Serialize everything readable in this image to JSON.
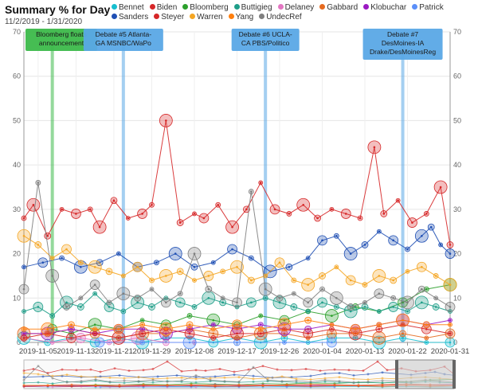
{
  "chart_data": {
    "type": "line",
    "title": "Summary % for Day",
    "subtitle": "11/2/2019 - 1/31/2020",
    "ylim": [
      0,
      70
    ],
    "y_ticks": [
      0,
      10,
      20,
      30,
      40,
      50,
      60,
      70
    ],
    "y_tick_labels": [
      "0",
      "10",
      "20",
      "30",
      "40",
      "50",
      "60",
      "70"
    ],
    "x_tick_labels": [
      "2019-11-05",
      "2019-11-13",
      "2019-11-21",
      "2019-11-29",
      "2019-12-08",
      "2019-12-17",
      "2019-12-26",
      "2020-01-04",
      "2020-01-13",
      "2020-01-22",
      "2020-01-31"
    ],
    "x_ticks_day": [
      3,
      11,
      19,
      27,
      36,
      45,
      54,
      63,
      72,
      81,
      90
    ],
    "x_range_days": [
      0,
      90
    ],
    "grid": true,
    "legend_position": "top-right",
    "annotations": [
      {
        "day": 6,
        "text": [
          "Bloomberg floats",
          "announcement"
        ],
        "color": "#3cb94a"
      },
      {
        "day": 21,
        "text": [
          "Debate #5 Atlanta-",
          "GA MSNBC/WaPo"
        ],
        "color": "#5aa8e6"
      },
      {
        "day": 51,
        "text": [
          "Debate #6 UCLA-",
          "CA PBS/Politico"
        ],
        "color": "#5aa8e6"
      },
      {
        "day": 80,
        "text": [
          "Debate #7",
          "DesMoines-IA",
          "Drake/DesMoinesReg"
        ],
        "color": "#5aa8e6"
      }
    ],
    "series": [
      {
        "name": "Bennet",
        "color": "#17becf",
        "x": [
          0,
          5,
          10,
          15,
          20,
          25,
          30,
          35,
          40,
          45,
          50,
          55,
          60,
          65,
          70,
          75,
          80,
          85,
          90
        ],
        "values": [
          1,
          0,
          1,
          0,
          1,
          0,
          1,
          1,
          0,
          1,
          0,
          1,
          0,
          1,
          1,
          0,
          1,
          0,
          0
        ]
      },
      {
        "name": "Biden",
        "color": "#d62728",
        "x": [
          0,
          2,
          5,
          8,
          11,
          14,
          16,
          19,
          22,
          25,
          27,
          30,
          33,
          36,
          38,
          41,
          44,
          47,
          50,
          53,
          56,
          59,
          62,
          65,
          68,
          71,
          74,
          76,
          79,
          82,
          85,
          88,
          90
        ],
        "values": [
          28,
          31,
          24,
          30,
          29,
          30,
          26,
          32,
          28,
          29,
          31,
          50,
          27,
          29,
          28,
          31,
          26,
          30,
          36,
          30,
          29,
          31,
          28,
          30,
          29,
          28,
          44,
          29,
          32,
          27,
          29,
          35,
          22
        ]
      },
      {
        "name": "Bloomberg",
        "color": "#2ca02c",
        "x": [
          6,
          10,
          15,
          20,
          25,
          30,
          35,
          40,
          45,
          50,
          55,
          60,
          65,
          70,
          75,
          80,
          85,
          90
        ],
        "values": [
          3,
          2,
          4,
          3,
          5,
          4,
          6,
          5,
          4,
          6,
          5,
          7,
          6,
          8,
          7,
          9,
          12,
          13
        ]
      },
      {
        "name": "Buttigieg",
        "color": "#1f9e89",
        "x": [
          0,
          3,
          6,
          9,
          12,
          15,
          18,
          21,
          24,
          27,
          30,
          33,
          36,
          39,
          42,
          45,
          48,
          51,
          54,
          57,
          60,
          63,
          66,
          69,
          72,
          75,
          78,
          81,
          84,
          87,
          90
        ],
        "values": [
          7,
          8,
          6,
          9,
          8,
          11,
          8,
          7,
          9,
          8,
          10,
          9,
          8,
          10,
          9,
          8,
          9,
          10,
          9,
          8,
          7,
          9,
          8,
          7,
          8,
          7,
          8,
          7,
          9,
          8,
          7
        ]
      },
      {
        "name": "Delaney",
        "color": "#e377c2",
        "x": [
          0,
          6,
          12,
          18,
          24,
          30,
          36
        ],
        "values": [
          1,
          0,
          1,
          0,
          1,
          0,
          0
        ]
      },
      {
        "name": "Gabbard",
        "color": "#e66a1f",
        "x": [
          0,
          5,
          10,
          15,
          20,
          25,
          30,
          35,
          40,
          45,
          50,
          55,
          60,
          65,
          70,
          75,
          80,
          85,
          90
        ],
        "values": [
          2,
          2,
          3,
          2,
          1,
          2,
          2,
          3,
          2,
          1,
          2,
          2,
          1,
          2,
          2,
          1,
          2,
          1,
          2
        ]
      },
      {
        "name": "Klobuchar",
        "color": "#9b19c2",
        "x": [
          0,
          5,
          10,
          15,
          20,
          25,
          30,
          35,
          40,
          45,
          50,
          55,
          60,
          65,
          70,
          75,
          80,
          85,
          90
        ],
        "values": [
          2,
          2,
          3,
          2,
          3,
          3,
          2,
          3,
          4,
          3,
          4,
          3,
          3,
          4,
          3,
          4,
          5,
          4,
          5
        ]
      },
      {
        "name": "Patrick",
        "color": "#5b8ff9",
        "x": [
          16,
          25,
          35,
          45,
          55,
          65
        ],
        "values": [
          0,
          0,
          0,
          0,
          0,
          0
        ]
      },
      {
        "name": "Sanders",
        "color": "#1f4fb4",
        "x": [
          0,
          4,
          8,
          12,
          16,
          20,
          24,
          28,
          32,
          36,
          40,
          44,
          48,
          52,
          56,
          60,
          63,
          66,
          69,
          72,
          75,
          78,
          81,
          84,
          86,
          88,
          90
        ],
        "values": [
          17,
          18,
          19,
          17,
          18,
          20,
          17,
          18,
          20,
          17,
          18,
          21,
          19,
          16,
          17,
          19,
          23,
          24,
          20,
          22,
          25,
          23,
          21,
          24,
          26,
          22,
          20
        ]
      },
      {
        "name": "Steyer",
        "color": "#d62728",
        "x": [
          0,
          5,
          10,
          15,
          20,
          25,
          30,
          35,
          40,
          45,
          50,
          55,
          60,
          65,
          70,
          75,
          80,
          85,
          90
        ],
        "values": [
          1,
          2,
          1,
          2,
          1,
          2,
          3,
          2,
          1,
          2,
          2,
          3,
          2,
          3,
          2,
          3,
          4,
          3,
          2
        ]
      },
      {
        "name": "Warren",
        "color": "#f5a623",
        "x": [
          0,
          3,
          6,
          9,
          12,
          15,
          18,
          21,
          24,
          27,
          30,
          33,
          36,
          39,
          42,
          45,
          48,
          51,
          54,
          57,
          60,
          63,
          66,
          69,
          72,
          75,
          78,
          81,
          84,
          87,
          90
        ],
        "values": [
          24,
          22,
          19,
          21,
          18,
          17,
          16,
          15,
          17,
          14,
          15,
          16,
          14,
          15,
          16,
          17,
          14,
          15,
          18,
          14,
          13,
          15,
          17,
          14,
          13,
          15,
          14,
          16,
          17,
          15,
          13
        ]
      },
      {
        "name": "Yang",
        "color": "#ff7f0e",
        "x": [
          0,
          5,
          10,
          15,
          20,
          25,
          30,
          35,
          40,
          45,
          50,
          55,
          60,
          65,
          70,
          75,
          80,
          85,
          90
        ],
        "values": [
          3,
          3,
          4,
          3,
          3,
          4,
          3,
          4,
          3,
          4,
          3,
          4,
          5,
          4,
          3,
          4,
          5,
          4,
          4
        ]
      },
      {
        "name": "UndecRef",
        "color": "#7f7f7f",
        "x": [
          0,
          3,
          6,
          9,
          12,
          15,
          18,
          21,
          24,
          27,
          30,
          33,
          36,
          39,
          42,
          45,
          48,
          51,
          54,
          57,
          60,
          63,
          66,
          69,
          72,
          75,
          78,
          81,
          84,
          87,
          90
        ],
        "values": [
          12,
          36,
          15,
          8,
          10,
          13,
          9,
          11,
          10,
          12,
          9,
          11,
          20,
          12,
          10,
          9,
          34,
          12,
          10,
          11,
          9,
          12,
          10,
          8,
          9,
          11,
          10,
          9,
          12,
          10,
          8
        ]
      }
    ]
  }
}
